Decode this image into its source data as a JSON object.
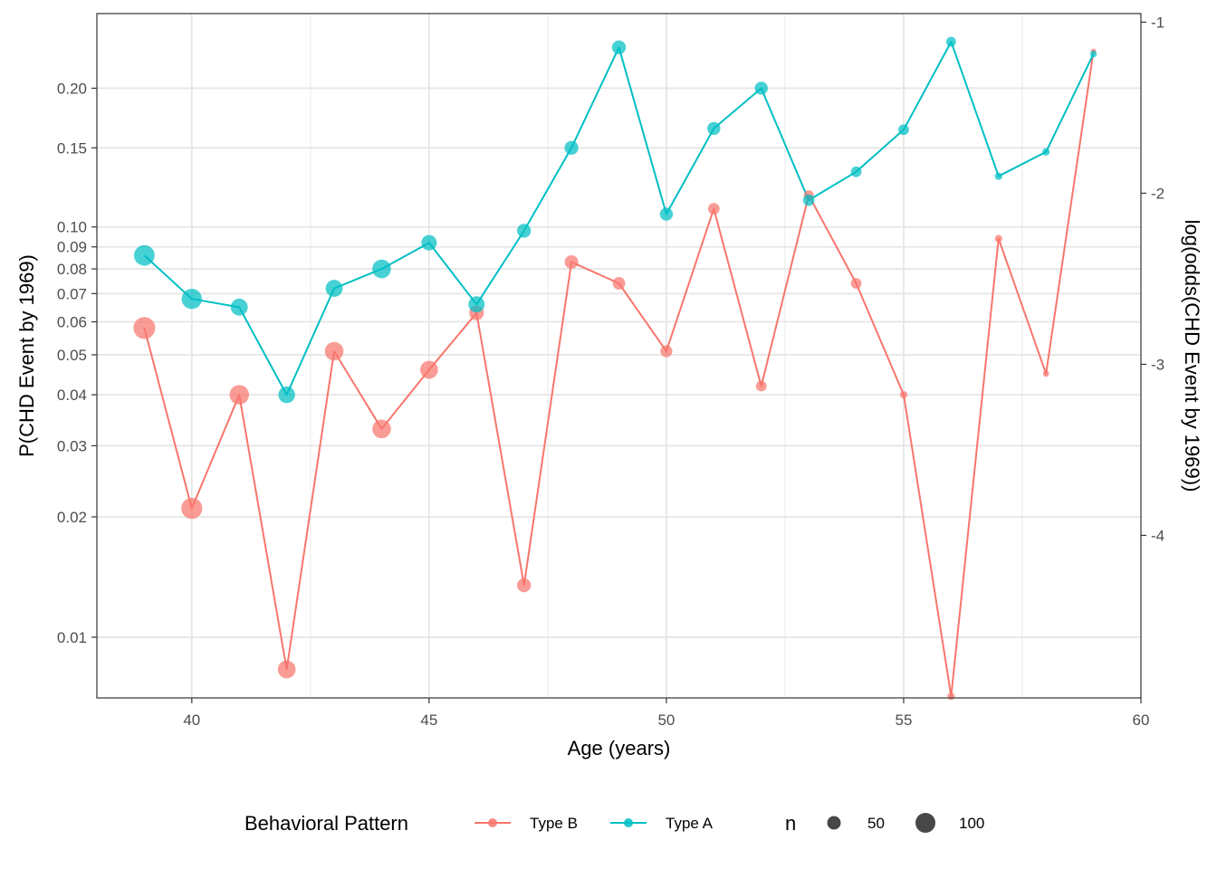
{
  "chart_data": {
    "type": "line",
    "xlabel": "Age (years)",
    "ylabel_left": "P(CHD Event by 1969)",
    "ylabel_right": "log(odds(CHD Event by 1969))",
    "xlim": [
      38,
      60
    ],
    "x_ticks": [
      40,
      45,
      50,
      55,
      60
    ],
    "y_scale": "logit",
    "ylim_logodds": [
      -4.95,
      -0.95
    ],
    "y_ticks_left": [
      {
        "value": 0.01,
        "label": "0.01"
      },
      {
        "value": 0.02,
        "label": "0.02"
      },
      {
        "value": 0.03,
        "label": "0.03"
      },
      {
        "value": 0.04,
        "label": "0.04"
      },
      {
        "value": 0.05,
        "label": "0.05"
      },
      {
        "value": 0.06,
        "label": "0.06"
      },
      {
        "value": 0.07,
        "label": "0.07"
      },
      {
        "value": 0.08,
        "label": "0.08"
      },
      {
        "value": 0.09,
        "label": "0.09"
      },
      {
        "value": 0.1,
        "label": "0.10"
      },
      {
        "value": 0.15,
        "label": "0.15"
      },
      {
        "value": 0.2,
        "label": "0.20"
      }
    ],
    "y_ticks_right": [
      {
        "value": -1,
        "label": "-1"
      },
      {
        "value": -2,
        "label": "-2"
      },
      {
        "value": -3,
        "label": "-3"
      },
      {
        "value": -4,
        "label": "-4"
      }
    ],
    "grid": true,
    "legend_position": "bottom",
    "legend": {
      "color_title": "Behavioral Pattern",
      "size_title": "n",
      "size_entries": [
        {
          "label": "50",
          "n": 50
        },
        {
          "label": "100",
          "n": 100
        }
      ]
    },
    "series": [
      {
        "name": "Type B",
        "color": "#f8766d",
        "points": [
          {
            "x": 39,
            "y": 0.058,
            "n": 120
          },
          {
            "x": 40,
            "y": 0.021,
            "n": 115
          },
          {
            "x": 41,
            "y": 0.04,
            "n": 105
          },
          {
            "x": 42,
            "y": 0.0083,
            "n": 95
          },
          {
            "x": 43,
            "y": 0.051,
            "n": 100
          },
          {
            "x": 44,
            "y": 0.033,
            "n": 100
          },
          {
            "x": 45,
            "y": 0.046,
            "n": 95
          },
          {
            "x": 46,
            "y": 0.063,
            "n": 75
          },
          {
            "x": 47,
            "y": 0.0135,
            "n": 70
          },
          {
            "x": 48,
            "y": 0.083,
            "n": 68
          },
          {
            "x": 49,
            "y": 0.074,
            "n": 62
          },
          {
            "x": 50,
            "y": 0.051,
            "n": 58
          },
          {
            "x": 51,
            "y": 0.11,
            "n": 55
          },
          {
            "x": 52,
            "y": 0.042,
            "n": 50
          },
          {
            "x": 53,
            "y": 0.118,
            "n": 45
          },
          {
            "x": 54,
            "y": 0.074,
            "n": 50
          },
          {
            "x": 55,
            "y": 0.04,
            "n": 30
          },
          {
            "x": 56,
            "y": 0.0071,
            "n": 30
          },
          {
            "x": 57,
            "y": 0.094,
            "n": 30
          },
          {
            "x": 58,
            "y": 0.045,
            "n": 22
          },
          {
            "x": 59,
            "y": 0.237,
            "n": 15
          }
        ]
      },
      {
        "name": "Type A",
        "color": "#00bfc4",
        "points": [
          {
            "x": 39,
            "y": 0.086,
            "n": 112
          },
          {
            "x": 40,
            "y": 0.068,
            "n": 110
          },
          {
            "x": 41,
            "y": 0.065,
            "n": 90
          },
          {
            "x": 42,
            "y": 0.04,
            "n": 88
          },
          {
            "x": 43,
            "y": 0.072,
            "n": 90
          },
          {
            "x": 44,
            "y": 0.08,
            "n": 100
          },
          {
            "x": 45,
            "y": 0.092,
            "n": 80
          },
          {
            "x": 46,
            "y": 0.066,
            "n": 85
          },
          {
            "x": 47,
            "y": 0.098,
            "n": 70
          },
          {
            "x": 48,
            "y": 0.15,
            "n": 70
          },
          {
            "x": 49,
            "y": 0.241,
            "n": 70
          },
          {
            "x": 50,
            "y": 0.107,
            "n": 65
          },
          {
            "x": 51,
            "y": 0.165,
            "n": 65
          },
          {
            "x": 52,
            "y": 0.2,
            "n": 65
          },
          {
            "x": 53,
            "y": 0.115,
            "n": 55
          },
          {
            "x": 54,
            "y": 0.133,
            "n": 50
          },
          {
            "x": 55,
            "y": 0.164,
            "n": 50
          },
          {
            "x": 56,
            "y": 0.247,
            "n": 45
          },
          {
            "x": 57,
            "y": 0.13,
            "n": 30
          },
          {
            "x": 58,
            "y": 0.147,
            "n": 30
          },
          {
            "x": 59,
            "y": 0.234,
            "n": 25
          }
        ]
      }
    ]
  }
}
